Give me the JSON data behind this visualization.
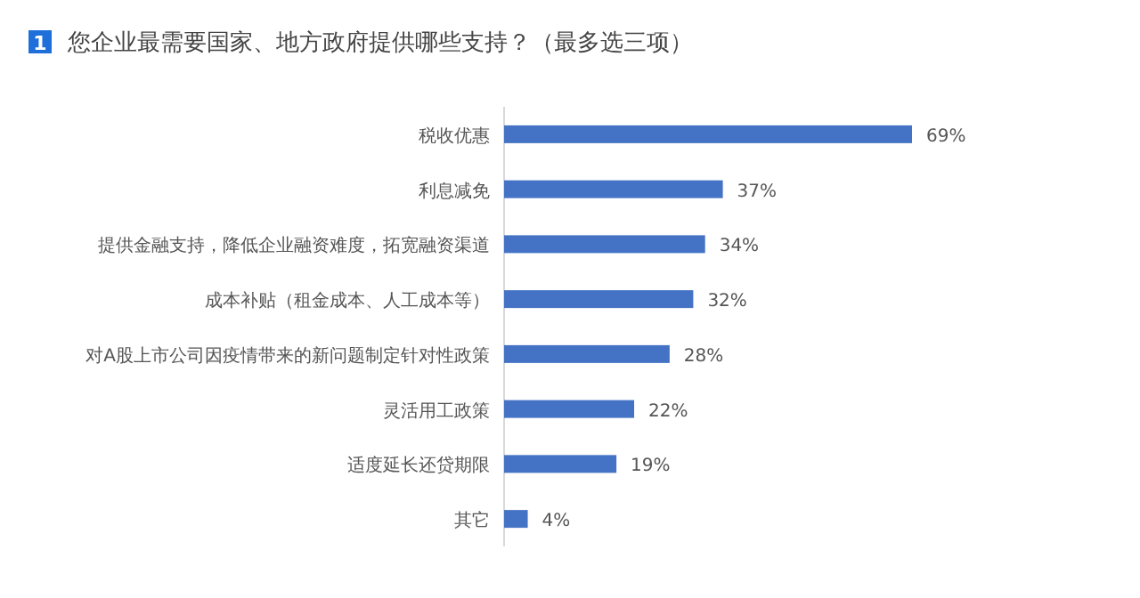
{
  "chart_data": {
    "type": "bar",
    "orientation": "horizontal",
    "title": "您企业最需要国家、地方政府提供哪些支持？（最多选三项）",
    "annotations": [
      "1"
    ],
    "categories": [
      "税收优惠",
      "利息减免",
      "提供金融支持，降低企业融资难度，拓宽融资渠道",
      "成本补贴（租金成本、人工成本等）",
      "对A股上市公司因疫情带来的新问题制定针对性政策",
      "灵活用工政策",
      "适度延长还贷期限",
      "其它"
    ],
    "values": [
      69,
      37,
      34,
      32,
      28,
      22,
      19,
      4
    ],
    "value_labels": [
      "69%",
      "37%",
      "34%",
      "32%",
      "28%",
      "22%",
      "19%",
      "4%"
    ],
    "color": "#4472c4"
  }
}
